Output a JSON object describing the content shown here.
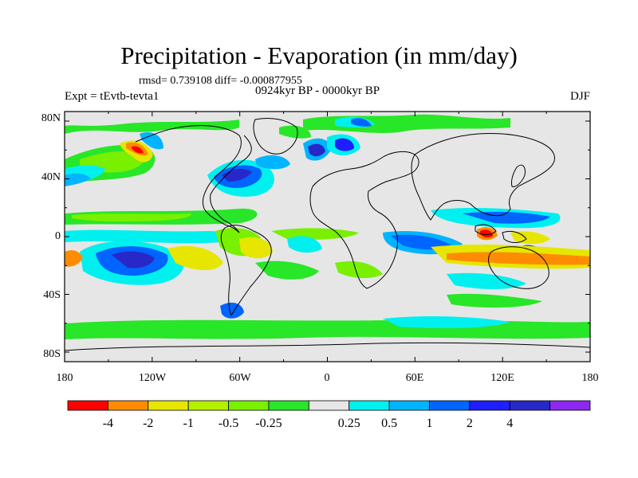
{
  "title": "Precipitation - Evaporation (in mm/day)",
  "stats": "rmsd= 0.739108 diff= -0.000877955",
  "period": "0924kyr BP - 0000kyr BP",
  "experiment": "Expt = tEvtb-tevta1",
  "season": "DJF",
  "lat_ticks": [
    "80N",
    "40N",
    "0",
    "40S",
    "80S"
  ],
  "lon_ticks": [
    "180",
    "120W",
    "60W",
    "0",
    "60E",
    "120E",
    "180"
  ],
  "colorbar": {
    "colors": [
      "#ff0000",
      "#ff8c00",
      "#e6e600",
      "#b4f000",
      "#78f000",
      "#28e628",
      "#e6e6e6",
      "#00f0f0",
      "#00b4ff",
      "#0064ff",
      "#1e1eff",
      "#2828c8",
      "#8c28f0"
    ],
    "labels": [
      "-4",
      "-2",
      "-1",
      "-0.5",
      "-0.25",
      "0.25",
      "0.5",
      "1",
      "2",
      "4"
    ]
  }
}
